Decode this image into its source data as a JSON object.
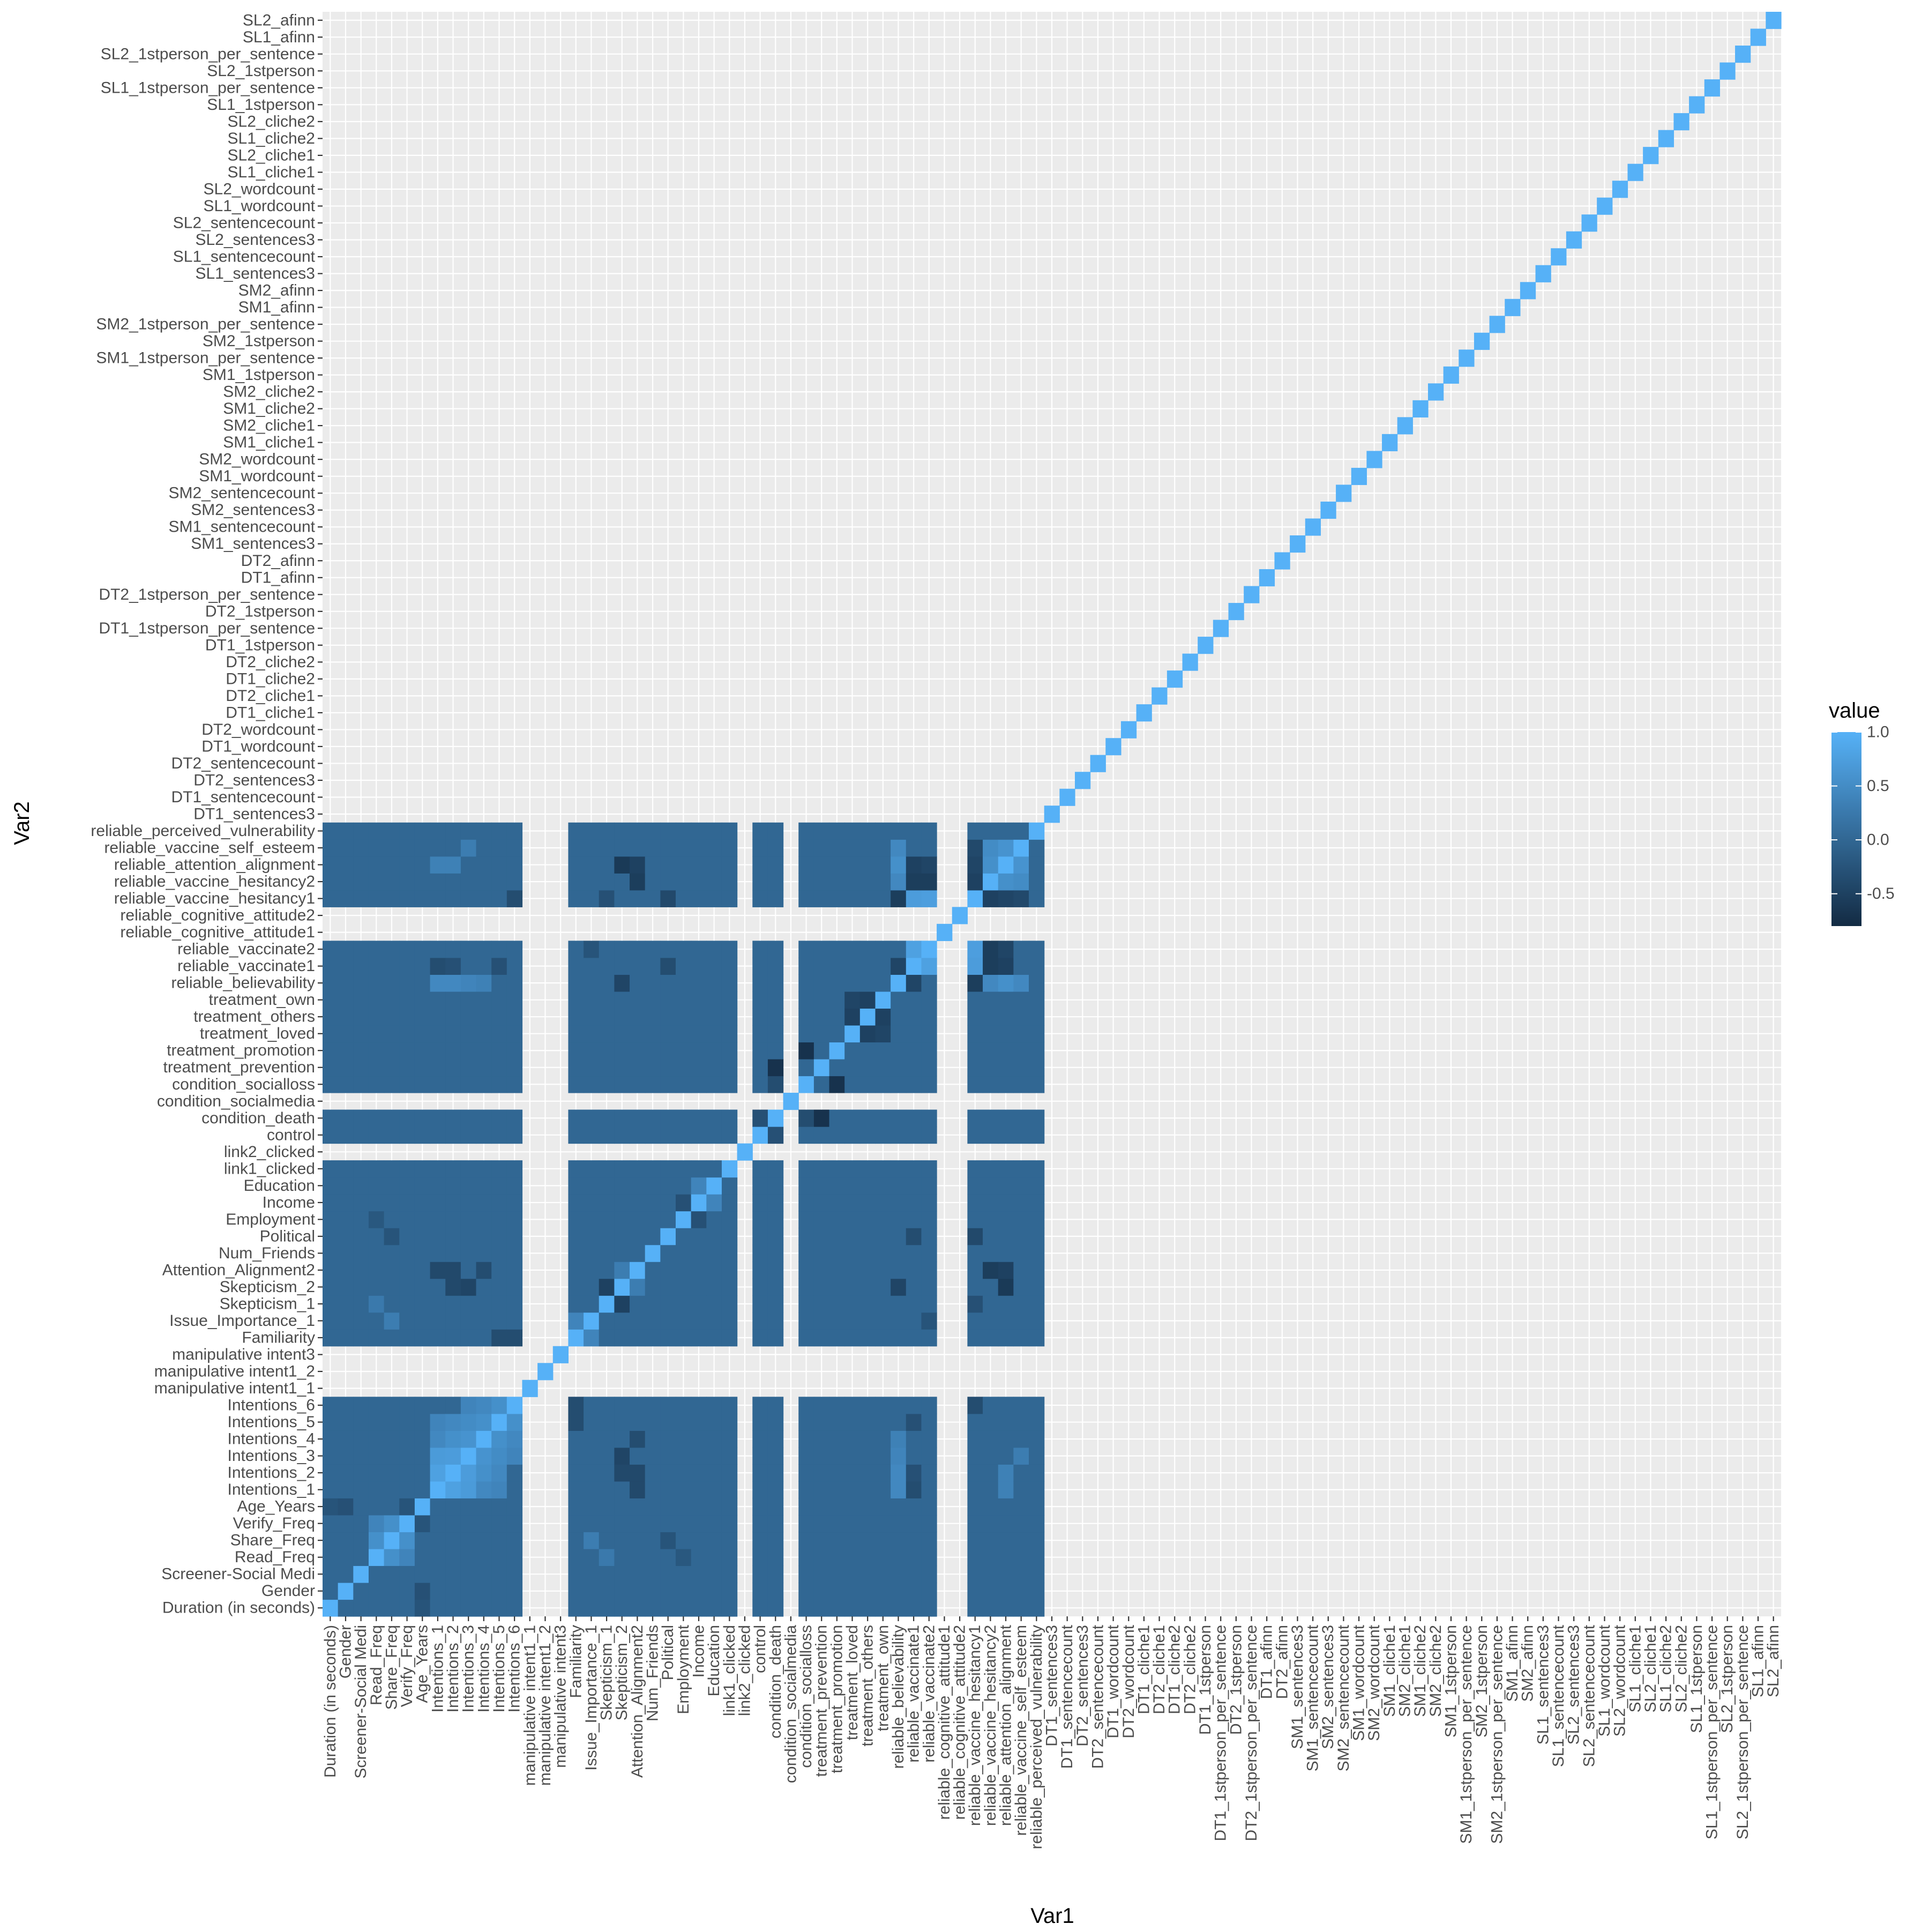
{
  "chart_data": {
    "type": "heatmap",
    "xlabel": "Var1",
    "ylabel": "Var2",
    "legend": {
      "title": "value",
      "ticks": [
        1.0,
        0.5,
        0.0,
        -0.5
      ],
      "tick_labels": [
        "1.0",
        "0.5",
        "0.0",
        "-0.5"
      ],
      "range": [
        -0.8,
        1.0
      ],
      "placement": "right"
    },
    "colors": {
      "panel": "#EBEBEB",
      "grid": "#FFFFFF",
      "low": "#132B43",
      "high": "#56B1F7",
      "text": "#4D4D4D"
    },
    "variables": [
      "Duration (in seconds)",
      "Gender",
      "Screener-Social Medi",
      "Read_Freq",
      "Share_Freq",
      "Verify_Freq",
      "Age_Years",
      "Intentions_1",
      "Intentions_2",
      "Intentions_3",
      "Intentions_4",
      "Intentions_5",
      "Intentions_6",
      "manipulative intent1_1",
      "manipulative intent1_2",
      "manipulative intent3",
      "Familiarity",
      "Issue_Importance_1",
      "Skepticism_1",
      "Skepticism_2",
      "Attention_Alignment2",
      "Num_Friends",
      "Political",
      "Employment",
      "Income",
      "Education",
      "link1_clicked",
      "link2_clicked",
      "control",
      "condition_death",
      "condition_socialmedia",
      "condition_socialloss",
      "treatment_prevention",
      "treatment_promotion",
      "treatment_loved",
      "treatment_others",
      "treatment_own",
      "reliable_believability",
      "reliable_vaccinate1",
      "reliable_vaccinate2",
      "reliable_cognitive_attitude1",
      "reliable_cognitive_attitude2",
      "reliable_vaccine_hesitancy1",
      "reliable_vaccine_hesitancy2",
      "reliable_attention_alignment",
      "reliable_vaccine_self_esteem",
      "reliable_perceived_vulnerability",
      "DT1_sentences3",
      "DT1_sentencecount",
      "DT2_sentences3",
      "DT2_sentencecount",
      "DT1_wordcount",
      "DT2_wordcount",
      "DT1_cliche1",
      "DT2_cliche1",
      "DT1_cliche2",
      "DT2_cliche2",
      "DT1_1stperson",
      "DT1_1stperson_per_sentence",
      "DT2_1stperson",
      "DT2_1stperson_per_sentence",
      "DT1_afinn",
      "DT2_afinn",
      "SM1_sentences3",
      "SM1_sentencecount",
      "SM2_sentences3",
      "SM2_sentencecount",
      "SM1_wordcount",
      "SM2_wordcount",
      "SM1_cliche1",
      "SM2_cliche1",
      "SM1_cliche2",
      "SM2_cliche2",
      "SM1_1stperson",
      "SM1_1stperson_per_sentence",
      "SM2_1stperson",
      "SM2_1stperson_per_sentence",
      "SM1_afinn",
      "SM2_afinn",
      "SL1_sentences3",
      "SL1_sentencecount",
      "SL2_sentences3",
      "SL2_sentencecount",
      "SL1_wordcount",
      "SL2_wordcount",
      "SL1_cliche1",
      "SL2_cliche1",
      "SL1_cliche2",
      "SL2_cliche2",
      "SL1_1stperson",
      "SL1_1stperson_per_sentence",
      "SL2_1stperson",
      "SL2_1stperson_per_sentence",
      "SL1_afinn",
      "SL2_afinn"
    ],
    "block_variable_count": 47,
    "na_variables": [
      "manipulative intent1_1",
      "manipulative intent1_2",
      "manipulative intent3",
      "link2_clicked",
      "condition_socialmedia",
      "reliable_cognitive_attitude1",
      "reliable_cognitive_attitude2"
    ],
    "cells": [
      {
        "x": "Intentions_1",
        "y": "Intentions_2",
        "value": 0.78
      },
      {
        "x": "Intentions_1",
        "y": "Intentions_3",
        "value": 0.7
      },
      {
        "x": "Intentions_2",
        "y": "Intentions_3",
        "value": 0.72
      },
      {
        "x": "Intentions_2",
        "y": "Intentions_4",
        "value": 0.55
      },
      {
        "x": "Intentions_3",
        "y": "Intentions_4",
        "value": 0.6
      },
      {
        "x": "Intentions_3",
        "y": "Intentions_5",
        "value": 0.5
      },
      {
        "x": "Intentions_4",
        "y": "Intentions_5",
        "value": 0.55
      },
      {
        "x": "Intentions_4",
        "y": "Intentions_6",
        "value": 0.45
      },
      {
        "x": "Intentions_5",
        "y": "Intentions_6",
        "value": 0.55
      },
      {
        "x": "Intentions_1",
        "y": "Intentions_4",
        "value": 0.45
      },
      {
        "x": "Intentions_1",
        "y": "Intentions_5",
        "value": 0.4
      },
      {
        "x": "Intentions_2",
        "y": "Intentions_5",
        "value": 0.45
      },
      {
        "x": "Intentions_3",
        "y": "Intentions_6",
        "value": 0.4
      },
      {
        "x": "Read_Freq",
        "y": "Share_Freq",
        "value": 0.55
      },
      {
        "x": "Share_Freq",
        "y": "Verify_Freq",
        "value": 0.55
      },
      {
        "x": "Read_Freq",
        "y": "Verify_Freq",
        "value": 0.4
      },
      {
        "x": "Skepticism_1",
        "y": "Skepticism_2",
        "value": -0.5
      },
      {
        "x": "Familiarity",
        "y": "Issue_Importance_1",
        "value": 0.4
      },
      {
        "x": "Income",
        "y": "Education",
        "value": 0.4
      },
      {
        "x": "Employment",
        "y": "Income",
        "value": -0.3
      },
      {
        "x": "link1_clicked",
        "y": "link2_clicked",
        "value": -0.4
      },
      {
        "x": "control",
        "y": "condition_death",
        "value": -0.3
      },
      {
        "x": "condition_death",
        "y": "condition_socialloss",
        "value": -0.35
      },
      {
        "x": "condition_death",
        "y": "treatment_prevention",
        "value": -0.7
      },
      {
        "x": "condition_socialloss",
        "y": "treatment_promotion",
        "value": -0.7
      },
      {
        "x": "treatment_loved",
        "y": "treatment_others",
        "value": -0.5
      },
      {
        "x": "treatment_others",
        "y": "treatment_own",
        "value": -0.5
      },
      {
        "x": "treatment_loved",
        "y": "treatment_own",
        "value": -0.45
      },
      {
        "x": "reliable_believability",
        "y": "reliable_vaccinate1",
        "value": -0.45
      },
      {
        "x": "reliable_vaccinate1",
        "y": "reliable_vaccinate2",
        "value": 0.78
      },
      {
        "x": "reliable_vaccinate1",
        "y": "reliable_vaccine_hesitancy1",
        "value": 0.72
      },
      {
        "x": "reliable_vaccinate2",
        "y": "reliable_vaccine_hesitancy1",
        "value": 0.75
      },
      {
        "x": "reliable_vaccinate1",
        "y": "reliable_vaccine_hesitancy2",
        "value": -0.55
      },
      {
        "x": "reliable_vaccinate2",
        "y": "reliable_vaccine_hesitancy2",
        "value": -0.55
      },
      {
        "x": "reliable_vaccinate1",
        "y": "reliable_attention_alignment",
        "value": -0.5
      },
      {
        "x": "reliable_vaccinate2",
        "y": "reliable_attention_alignment",
        "value": -0.45
      },
      {
        "x": "reliable_vaccine_hesitancy1",
        "y": "reliable_vaccine_hesitancy2",
        "value": -0.5
      },
      {
        "x": "reliable_vaccine_hesitancy1",
        "y": "reliable_attention_alignment",
        "value": -0.45
      },
      {
        "x": "reliable_vaccine_hesitancy2",
        "y": "reliable_attention_alignment",
        "value": 0.55
      },
      {
        "x": "reliable_vaccine_hesitancy2",
        "y": "reliable_vaccine_self_esteem",
        "value": 0.5
      },
      {
        "x": "reliable_attention_alignment",
        "y": "reliable_vaccine_self_esteem",
        "value": 0.6
      },
      {
        "x": "reliable_vaccine_hesitancy1",
        "y": "reliable_vaccine_self_esteem",
        "value": -0.4
      },
      {
        "x": "reliable_believability",
        "y": "reliable_vaccine_hesitancy1",
        "value": -0.55
      },
      {
        "x": "reliable_believability",
        "y": "reliable_attention_alignment",
        "value": 0.55
      },
      {
        "x": "reliable_believability",
        "y": "reliable_vaccine_self_esteem",
        "value": 0.45
      },
      {
        "x": "reliable_believability",
        "y": "reliable_vaccine_hesitancy2",
        "value": 0.45
      },
      {
        "x": "Intentions_1",
        "y": "reliable_believability",
        "value": 0.45
      },
      {
        "x": "Intentions_2",
        "y": "reliable_believability",
        "value": 0.45
      },
      {
        "x": "Intentions_3",
        "y": "reliable_believability",
        "value": 0.4
      },
      {
        "x": "Intentions_4",
        "y": "reliable_believability",
        "value": 0.35
      },
      {
        "x": "Intentions_1",
        "y": "reliable_attention_alignment",
        "value": 0.35
      },
      {
        "x": "Intentions_2",
        "y": "reliable_attention_alignment",
        "value": 0.35
      },
      {
        "x": "Intentions_3",
        "y": "reliable_vaccine_self_esteem",
        "value": 0.3
      },
      {
        "x": "Intentions_1",
        "y": "Attention_Alignment2",
        "value": -0.4
      },
      {
        "x": "Intentions_2",
        "y": "Attention_Alignment2",
        "value": -0.4
      },
      {
        "x": "Intentions_4",
        "y": "Attention_Alignment2",
        "value": -0.35
      },
      {
        "x": "Skepticism_2",
        "y": "reliable_attention_alignment",
        "value": -0.6
      },
      {
        "x": "Skepticism_2",
        "y": "reliable_believability",
        "value": -0.45
      },
      {
        "x": "Skepticism_2",
        "y": "Intentions_3",
        "value": -0.45
      },
      {
        "x": "Skepticism_2",
        "y": "Intentions_2",
        "value": -0.4
      },
      {
        "x": "reliable_vaccine_hesitancy2",
        "y": "Attention_Alignment2",
        "value": -0.55
      },
      {
        "x": "reliable_attention_alignment",
        "y": "Attention_Alignment2",
        "value": -0.5
      },
      {
        "x": "reliable_vaccine_hesitancy1",
        "y": "Political",
        "value": -0.4
      },
      {
        "x": "reliable_vaccinate1",
        "y": "Political",
        "value": -0.35
      },
      {
        "x": "reliable_vaccinate1",
        "y": "Intentions_1",
        "value": -0.35
      },
      {
        "x": "reliable_vaccinate1",
        "y": "Intentions_2",
        "value": -0.3
      },
      {
        "x": "reliable_vaccinate1",
        "y": "Intentions_5",
        "value": -0.3
      },
      {
        "x": "reliable_vaccine_hesitancy1",
        "y": "Intentions_6",
        "value": -0.35
      },
      {
        "x": "reliable_vaccine_hesitancy1",
        "y": "Skepticism_1",
        "value": -0.3
      },
      {
        "x": "reliable_vaccinate2",
        "y": "Issue_Importance_1",
        "value": -0.25
      },
      {
        "x": "Attention_Alignment2",
        "y": "Skepticism_2",
        "value": 0.3
      },
      {
        "x": "Age_Years",
        "y": "Gender",
        "value": -0.3
      },
      {
        "x": "Age_Years",
        "y": "Verify_Freq",
        "value": -0.25
      },
      {
        "x": "Duration (in seconds)",
        "y": "Age_Years",
        "value": -0.25
      },
      {
        "x": "Intentions_5",
        "y": "Familiarity",
        "value": -0.35
      },
      {
        "x": "Intentions_6",
        "y": "Familiarity",
        "value": -0.35
      },
      {
        "x": "Share_Freq",
        "y": "Issue_Importance_1",
        "value": 0.3
      },
      {
        "x": "Read_Freq",
        "y": "Skepticism_1",
        "value": 0.25
      },
      {
        "x": "Share_Freq",
        "y": "Political",
        "value": -0.25
      },
      {
        "x": "Read_Freq",
        "y": "Employment",
        "value": -0.2
      }
    ],
    "default_offdiagonal_value": 0.0,
    "diagonal_value": 1.0
  }
}
